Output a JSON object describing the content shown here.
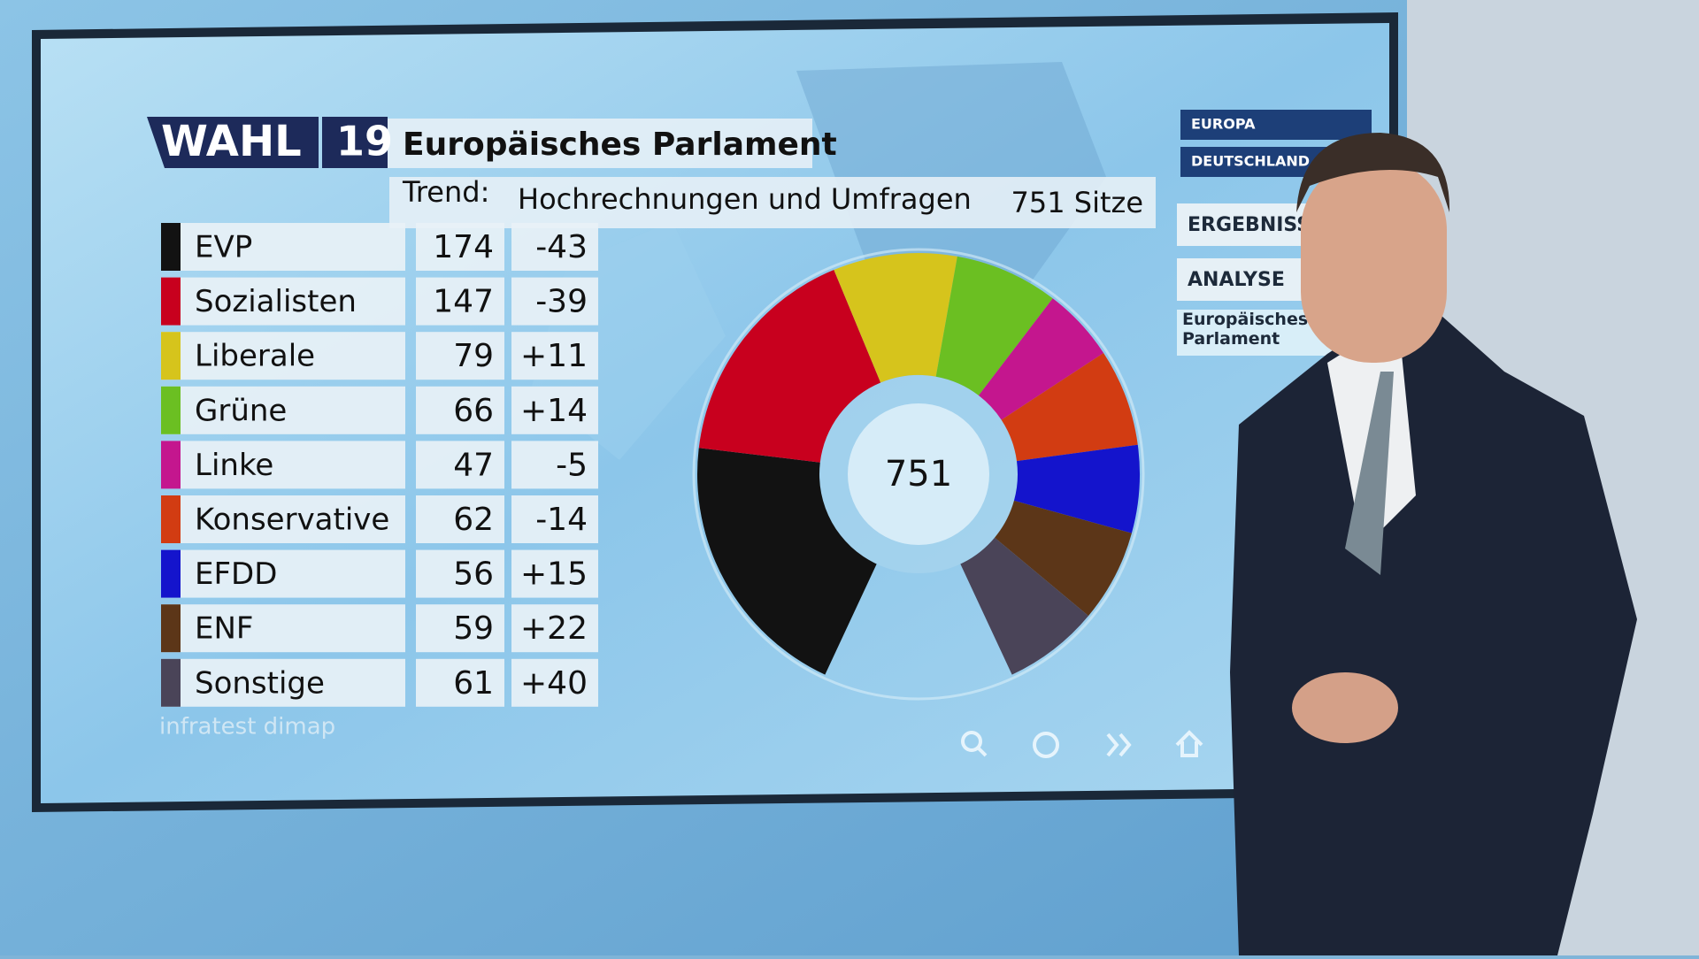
{
  "chart_data": {
    "type": "donut",
    "brand": "WAHL",
    "brand_year": "19",
    "title": "Europäisches Parlament",
    "subtitle": "Trend:",
    "subtitle_detail": "Hochrechnungen und Umfragen",
    "seats_label": "751 Sitze",
    "total": 751,
    "categories": [
      "EVP",
      "Sozialisten",
      "Liberale",
      "Grüne",
      "Linke",
      "Konservative",
      "EFDD",
      "ENF",
      "Sonstige"
    ],
    "values": [
      174,
      147,
      79,
      66,
      47,
      62,
      56,
      59,
      61
    ],
    "colors": [
      "#121212",
      "#c8001e",
      "#d6c41c",
      "#6bbf22",
      "#c4168e",
      "#d23c12",
      "#1414cc",
      "#5c3618",
      "#4a4458"
    ],
    "changes": {
      "values": [
        -43,
        -39,
        11,
        14,
        -5,
        -14,
        15,
        22,
        40
      ],
      "value_labels": [
        "-43",
        "-39",
        "+11",
        "+14",
        "-5",
        "-14",
        "+15",
        "+22",
        "+40"
      ]
    },
    "source": "infratest dimap"
  },
  "navigation": {
    "items": [
      "EUROPA",
      "DEUTSCHLAND",
      "ERGEBNISS",
      "ANALYSE",
      "Europäisches Parlament"
    ]
  }
}
